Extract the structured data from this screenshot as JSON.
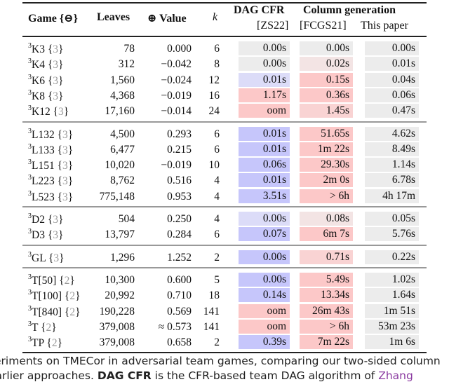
{
  "header": {
    "game": "Game {⊖}",
    "leaves": "Leaves",
    "value": "⊕ Value",
    "k": "k",
    "dag_cfr": "DAG CFR",
    "dag_cfr_ref": "[ZS22]",
    "colgen": "Column generation",
    "colgen_ref": "[FCGS21]",
    "this_paper": "This paper"
  },
  "colors": {
    "gray": "#ececec",
    "blue": "#c6c6fb",
    "lightblue": "#dcdcf8",
    "red": "#fcc8c8",
    "midred": "#f9d3d3",
    "lightred": "#f3e4e4"
  },
  "groups": [
    [
      {
        "game": "K3",
        "team": "3",
        "leaves": "78",
        "value": "0.000",
        "k": "6",
        "dag": "0.00s",
        "dag_shade": "gray",
        "fcgs": "0.00s",
        "fcgs_shade": "gray",
        "ours": "0.00s"
      },
      {
        "game": "K4",
        "team": "3",
        "leaves": "312",
        "value": "−0.042",
        "k": "8",
        "dag": "0.00s",
        "dag_shade": "gray",
        "fcgs": "0.02s",
        "fcgs_shade": "lightred",
        "ours": "0.01s"
      },
      {
        "game": "K6",
        "team": "3",
        "leaves": "1,560",
        "value": "−0.024",
        "k": "12",
        "dag": "0.01s",
        "dag_shade": "lightblue",
        "fcgs": "0.15s",
        "fcgs_shade": "red",
        "ours": "0.04s"
      },
      {
        "game": "K8",
        "team": "3",
        "leaves": "4,368",
        "value": "−0.019",
        "k": "16",
        "dag": "1.17s",
        "dag_shade": "red",
        "fcgs": "0.36s",
        "fcgs_shade": "red",
        "ours": "0.06s"
      },
      {
        "game": "K12",
        "team": "3",
        "leaves": "17,160",
        "value": "−0.014",
        "k": "24",
        "dag": "oom",
        "dag_shade": "red",
        "fcgs": "1.45s",
        "fcgs_shade": "midred",
        "ours": "0.47s"
      }
    ],
    [
      {
        "game": "L132",
        "team": "3",
        "leaves": "4,500",
        "value": "0.293",
        "k": "6",
        "dag": "0.01s",
        "dag_shade": "blue",
        "fcgs": "51.65s",
        "fcgs_shade": "red",
        "ours": "4.62s"
      },
      {
        "game": "L133",
        "team": "3",
        "leaves": "6,477",
        "value": "0.215",
        "k": "6",
        "dag": "0.01s",
        "dag_shade": "blue",
        "fcgs": "1m 22s",
        "fcgs_shade": "red",
        "ours": "8.49s"
      },
      {
        "game": "L151",
        "team": "3",
        "leaves": "10,020",
        "value": "−0.019",
        "k": "10",
        "dag": "0.06s",
        "dag_shade": "blue",
        "fcgs": "29.30s",
        "fcgs_shade": "red",
        "ours": "1.14s"
      },
      {
        "game": "L223",
        "team": "3",
        "leaves": "8,762",
        "value": "0.516",
        "k": "4",
        "dag": "0.01s",
        "dag_shade": "blue",
        "fcgs": "2m 0s",
        "fcgs_shade": "red",
        "ours": "6.78s"
      },
      {
        "game": "L523",
        "team": "3",
        "leaves": "775,148",
        "value": "0.953",
        "k": "4",
        "dag": "3.51s",
        "dag_shade": "blue",
        "fcgs": "> 6h",
        "fcgs_shade": "red",
        "ours": "4h 17m"
      }
    ],
    [
      {
        "game": "D2",
        "team": "3",
        "leaves": "504",
        "value": "0.250",
        "k": "4",
        "dag": "0.00s",
        "dag_shade": "lightblue",
        "fcgs": "0.08s",
        "fcgs_shade": "lightred",
        "ours": "0.05s"
      },
      {
        "game": "D3",
        "team": "3",
        "leaves": "13,797",
        "value": "0.284",
        "k": "6",
        "dag": "0.07s",
        "dag_shade": "blue",
        "fcgs": "6m 7s",
        "fcgs_shade": "red",
        "ours": "5.76s"
      }
    ],
    [
      {
        "game": "GL",
        "team": "3",
        "leaves": "1,296",
        "value": "1.252",
        "k": "2",
        "dag": "0.00s",
        "dag_shade": "blue",
        "fcgs": "0.71s",
        "fcgs_shade": "midred",
        "ours": "0.22s"
      }
    ],
    [
      {
        "game": "T[50]",
        "team": "2",
        "leaves": "10,300",
        "value": "0.600",
        "k": "5",
        "dag": "0.00s",
        "dag_shade": "blue",
        "fcgs": "5.49s",
        "fcgs_shade": "red",
        "ours": "1.02s"
      },
      {
        "game": "T[100]",
        "team": "2",
        "leaves": "20,992",
        "value": "0.710",
        "k": "18",
        "dag": "0.14s",
        "dag_shade": "blue",
        "fcgs": "13.34s",
        "fcgs_shade": "red",
        "ours": "1.64s"
      },
      {
        "game": "T[840]",
        "team": "2",
        "leaves": "190,228",
        "value": "0.569",
        "k": "141",
        "dag": "oom",
        "dag_shade": "red",
        "fcgs": "26m 43s",
        "fcgs_shade": "red",
        "ours": "1m 51s"
      },
      {
        "game": "T",
        "team": "2",
        "leaves": "379,008",
        "value": "≈ 0.573",
        "k": "141",
        "dag": "oom",
        "dag_shade": "red",
        "fcgs": "> 6h",
        "fcgs_shade": "red",
        "ours": "53m 23s"
      },
      {
        "game": "TP",
        "team": "2",
        "leaves": "379,008",
        "value": "0.658",
        "k": "2",
        "dag": "0.39s",
        "dag_shade": "blue",
        "fcgs": "7m 22s",
        "fcgs_shade": "red",
        "ours": "1m 6s"
      }
    ]
  ],
  "caption": {
    "line1": "eriments on TMECor in adversarial team games, comparing our two-sided column",
    "line2_a": "earlier approaches. ",
    "line2_b": "DAG CFR",
    "line2_c": " is the CFR-based team DAG algorithm of ",
    "line2_link": "Zhang"
  }
}
